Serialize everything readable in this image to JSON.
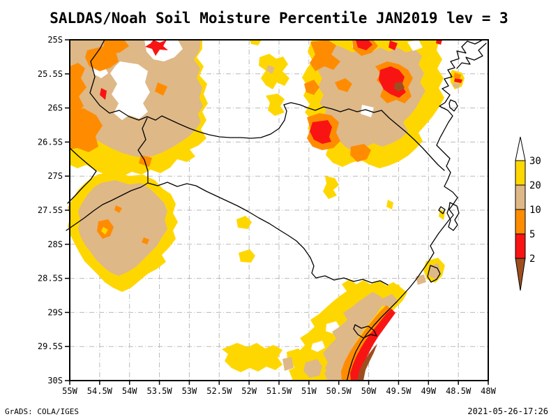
{
  "title": "SALDAS/Noah Soil Moisture Percentile JAN2019 lev = 3",
  "axes": {
    "lat_ticks": [
      "25S",
      "25.5S",
      "26S",
      "26.5S",
      "27S",
      "27.5S",
      "28S",
      "28.5S",
      "29S",
      "29.5S",
      "30S"
    ],
    "lon_ticks": [
      "55W",
      "54.5W",
      "54W",
      "53.5W",
      "53W",
      "52.5W",
      "52W",
      "51.5W",
      "51W",
      "50.5W",
      "50W",
      "49.5W",
      "49W",
      "48.5W",
      "48W"
    ]
  },
  "colorbar": {
    "labels": [
      "30",
      "20",
      "10",
      "5",
      "2"
    ],
    "band_colors": [
      "#ffd700",
      "#deb887",
      "#ff8c00",
      "#f91414",
      "#9e4e1e"
    ],
    "top_arrow_color": "#ffffff"
  },
  "palette": {
    "yellow": "#ffd700",
    "tan": "#deb887",
    "orange": "#ff8c00",
    "red": "#f91414",
    "brown": "#9e4e1e",
    "gridline": "#b9b9b9"
  },
  "footer": {
    "credit": "GrADS: COLA/IGES",
    "timestamp": "2021-05-26-17:26"
  }
}
